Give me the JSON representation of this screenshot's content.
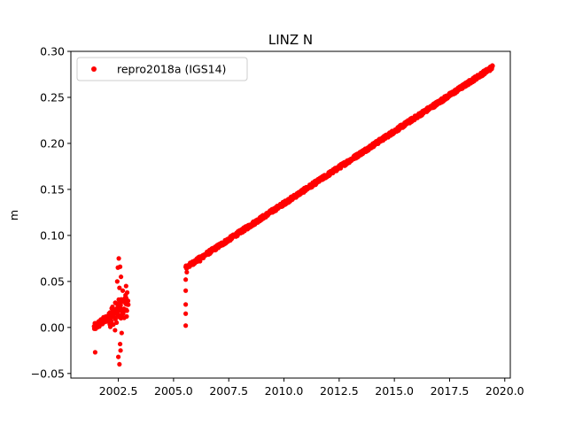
{
  "chart_data": {
    "type": "scatter",
    "title": "LINZ N",
    "xlabel": "",
    "ylabel": "m",
    "xlim": [
      2000.35,
      2020.25
    ],
    "ylim": [
      -0.055,
      0.3
    ],
    "xticks": [
      2002.5,
      2005.0,
      2007.5,
      2010.0,
      2012.5,
      2015.0,
      2017.5,
      2020.0
    ],
    "xtick_labels": [
      "2002.5",
      "2005.0",
      "2007.5",
      "2010.0",
      "2012.5",
      "2015.0",
      "2017.5",
      "2020.0"
    ],
    "yticks": [
      -0.05,
      0.0,
      0.05,
      0.1,
      0.15,
      0.2,
      0.25,
      0.3
    ],
    "ytick_labels": [
      "−0.05",
      "0.00",
      "0.05",
      "0.10",
      "0.15",
      "0.20",
      "0.25",
      "0.30"
    ],
    "legend": {
      "placement": "top-left"
    },
    "grid": false,
    "series": [
      {
        "name": "repro2018a (IGS14)",
        "color": "#ff0000",
        "marker": "circle",
        "segments": [
          {
            "x_start": 2001.4,
            "x_end": 2002.1,
            "y_start": 0.0,
            "y_end": 0.012,
            "noise": 0.004,
            "count": 60
          },
          {
            "x_start": 2002.1,
            "x_end": 2002.95,
            "y_start": 0.012,
            "y_end": 0.025,
            "noise": 0.012,
            "count": 70
          },
          {
            "x_start": 2005.55,
            "x_end": 2019.45,
            "y_start": 0.065,
            "y_end": 0.283,
            "noise": 0.0022,
            "count": 1100
          }
        ],
        "points": [
          [
            2001.45,
            -0.027
          ],
          [
            2002.55,
            -0.04
          ],
          [
            2002.5,
            -0.032
          ],
          [
            2002.6,
            -0.025
          ],
          [
            2002.52,
            0.075
          ],
          [
            2002.48,
            0.065
          ],
          [
            2002.58,
            0.066
          ],
          [
            2002.62,
            0.055
          ],
          [
            2002.45,
            0.05
          ],
          [
            2002.55,
            0.043
          ],
          [
            2002.7,
            0.04
          ],
          [
            2002.85,
            0.045
          ],
          [
            2002.9,
            0.038
          ],
          [
            2002.35,
            -0.003
          ],
          [
            2002.65,
            -0.006
          ],
          [
            2002.58,
            -0.018
          ],
          [
            2002.42,
            0.02
          ],
          [
            2002.68,
            0.03
          ],
          [
            2002.8,
            0.032
          ],
          [
            2002.75,
            0.018
          ],
          [
            2005.55,
            0.002
          ],
          [
            2005.55,
            0.015
          ],
          [
            2005.55,
            0.025
          ],
          [
            2005.55,
            0.04
          ],
          [
            2005.55,
            0.052
          ],
          [
            2005.6,
            0.06
          ],
          [
            2005.65,
            0.066
          ],
          [
            2005.75,
            0.068
          ],
          [
            2006.0,
            0.071
          ],
          [
            2006.2,
            0.072
          ]
        ]
      }
    ]
  }
}
